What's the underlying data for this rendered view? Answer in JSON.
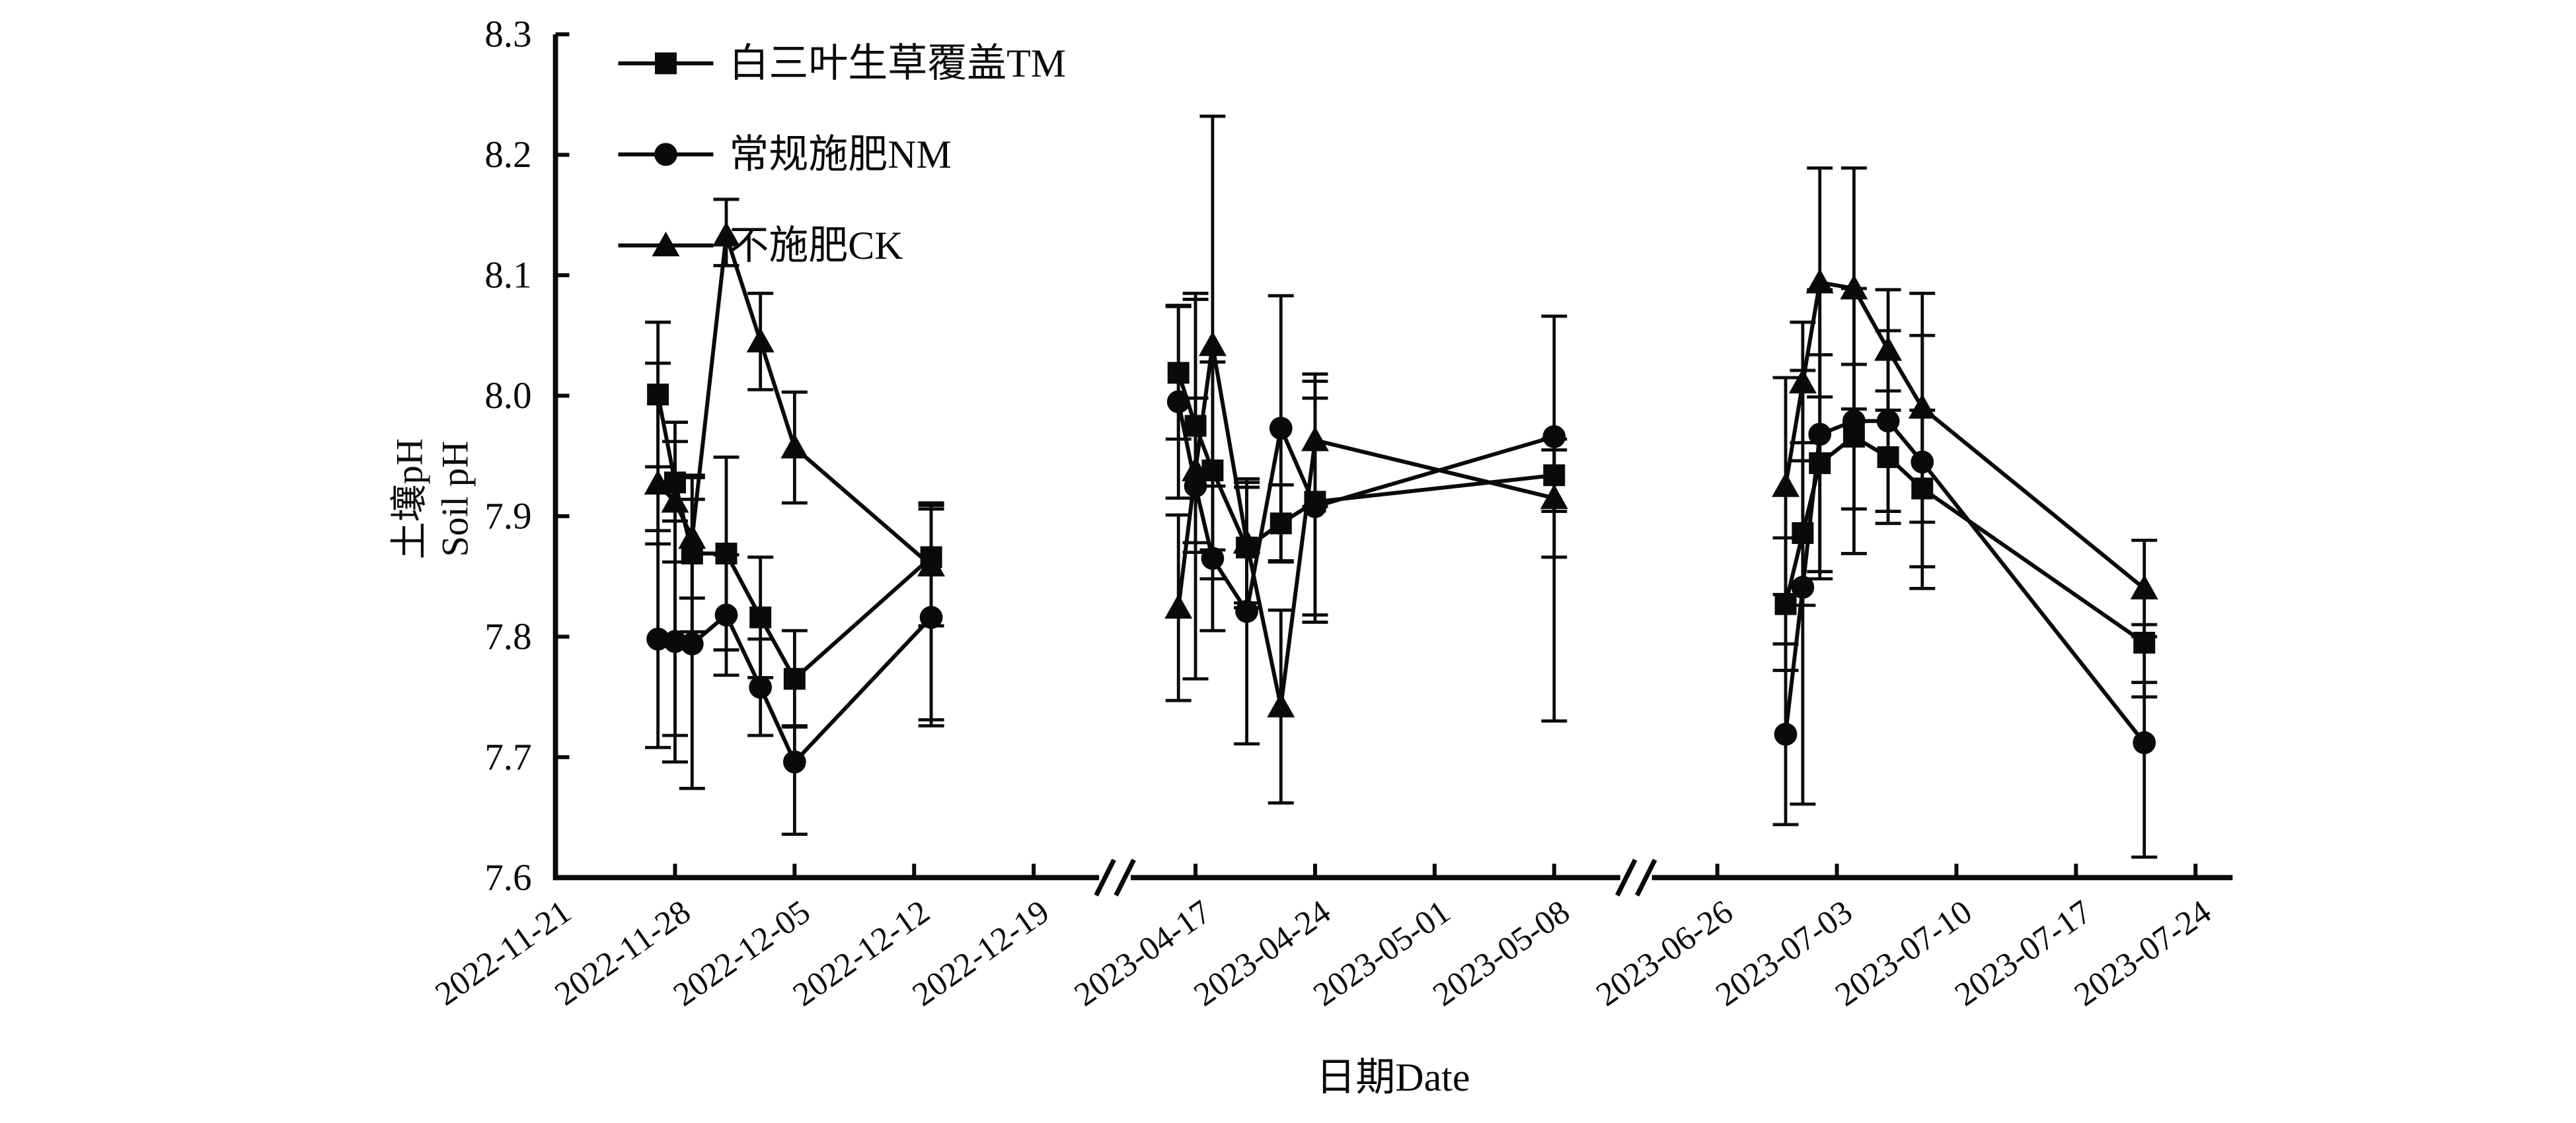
{
  "figure": {
    "background": "#ffffff",
    "ink_color": "#0a0a0a",
    "y_axis": {
      "title_cn": "土壤pH",
      "title_en": "Soil pH",
      "min": 7.6,
      "max": 8.3,
      "step": 0.1,
      "tick_labels": [
        "8.3",
        "8.2",
        "8.1",
        "8.0",
        "7.9",
        "7.8",
        "7.7",
        "7.6"
      ]
    },
    "x_axis": {
      "title": "日期Date",
      "segments": [
        {
          "tick_labels": [
            "2022-11-21",
            "2022-11-28",
            "2022-12-05",
            "2022-12-12",
            "2022-12-19"
          ]
        },
        {
          "tick_labels": [
            "2023-04-17",
            "2023-04-24",
            "2023-05-01",
            "2023-05-08"
          ]
        },
        {
          "tick_labels": [
            "2023-06-26",
            "2023-07-03",
            "2023-07-10",
            "2023-07-17",
            "2023-07-24"
          ]
        }
      ],
      "break_marks": 2
    },
    "legend": {
      "position": "upper-left-inside",
      "items": [
        {
          "label": "白三叶生草覆盖TM",
          "marker": "square"
        },
        {
          "label": "常规施肥NM",
          "marker": "circle"
        },
        {
          "label": "不施肥CK",
          "marker": "triangle"
        }
      ]
    }
  },
  "chart_data": {
    "type": "line",
    "title": "",
    "xlabel": "日期Date",
    "ylabel": "土壤pH Soil pH",
    "ylim": [
      7.6,
      8.3
    ],
    "grid": false,
    "error_bars": true,
    "series": [
      {
        "name": "白三叶生草覆盖TM",
        "marker": "square",
        "points": [
          {
            "date": "2022-11-27",
            "ph": 8.001,
            "err_up": 0.06,
            "err_dn": 0.06
          },
          {
            "date": "2022-11-28",
            "ph": 7.928,
            "err_up": 0.05,
            "err_dn": 0.21
          },
          {
            "date": "2022-11-29",
            "ph": 7.869,
            "err_up": 0.065,
            "err_dn": 0.065
          },
          {
            "date": "2022-12-01",
            "ph": 7.869,
            "err_up": 0.08,
            "err_dn": 0.08
          },
          {
            "date": "2022-12-03",
            "ph": 7.816,
            "err_up": 0.05,
            "err_dn": 0.05
          },
          {
            "date": "2022-12-05",
            "ph": 7.765,
            "err_up": 0.04,
            "err_dn": 0.04
          },
          {
            "date": "2022-12-13",
            "ph": 7.866,
            "err_up": 0.045,
            "err_dn": 0.135
          },
          {
            "date": "2023-04-16",
            "ph": 8.019,
            "err_up": 0.055,
            "err_dn": 0.055
          },
          {
            "date": "2023-04-17",
            "ph": 7.975,
            "err_up": 0.105,
            "err_dn": 0.105
          },
          {
            "date": "2023-04-18",
            "ph": 7.938,
            "err_up": 0.09,
            "err_dn": 0.09
          },
          {
            "date": "2023-04-20",
            "ph": 7.874,
            "err_up": 0.05,
            "err_dn": 0.05
          },
          {
            "date": "2023-04-22",
            "ph": 7.894,
            "err_up": 0.032,
            "err_dn": 0.032
          },
          {
            "date": "2023-04-24",
            "ph": 7.912,
            "err_up": 0.1,
            "err_dn": 0.1
          },
          {
            "date": "2023-05-08",
            "ph": 7.934,
            "err_up": 0.03,
            "err_dn": 0.03
          },
          {
            "date": "2023-06-30",
            "ph": 7.827,
            "err_up": 0.055,
            "err_dn": 0.055
          },
          {
            "date": "2023-07-01",
            "ph": 7.886,
            "err_up": 0.06,
            "err_dn": 0.06
          },
          {
            "date": "2023-07-02",
            "ph": 7.944,
            "err_up": 0.09,
            "err_dn": 0.09
          },
          {
            "date": "2023-07-04",
            "ph": 7.966,
            "err_up": 0.06,
            "err_dn": 0.06
          },
          {
            "date": "2023-07-06",
            "ph": 7.949,
            "err_up": 0.055,
            "err_dn": 0.055
          },
          {
            "date": "2023-07-08",
            "ph": 7.923,
            "err_up": 0.065,
            "err_dn": 0.065
          },
          {
            "date": "2023-07-21",
            "ph": 7.795,
            "err_up": 0.015,
            "err_dn": 0.045
          }
        ]
      },
      {
        "name": "常规施肥NM",
        "marker": "circle",
        "points": [
          {
            "date": "2022-11-27",
            "ph": 7.798,
            "err_up": 0.09,
            "err_dn": 0.09
          },
          {
            "date": "2022-11-28",
            "ph": 7.796,
            "err_up": 0.1,
            "err_dn": 0.1
          },
          {
            "date": "2022-11-29",
            "ph": 7.794,
            "err_up": 0.12,
            "err_dn": 0.12
          },
          {
            "date": "2022-12-01",
            "ph": 7.818,
            "err_up": 0.05,
            "err_dn": 0.05
          },
          {
            "date": "2022-12-03",
            "ph": 7.758,
            "err_up": 0.04,
            "err_dn": 0.04
          },
          {
            "date": "2022-12-05",
            "ph": 7.696,
            "err_up": 0.03,
            "err_dn": 0.06
          },
          {
            "date": "2022-12-13",
            "ph": 7.816,
            "err_up": 0.09,
            "err_dn": 0.09
          },
          {
            "date": "2023-04-16",
            "ph": 7.995,
            "err_up": 0.08,
            "err_dn": 0.08
          },
          {
            "date": "2023-04-17",
            "ph": 7.925,
            "err_up": 0.16,
            "err_dn": 0.16
          },
          {
            "date": "2023-04-18",
            "ph": 7.865,
            "err_up": 0.06,
            "err_dn": 0.06
          },
          {
            "date": "2023-04-20",
            "ph": 7.821,
            "err_up": 0.11,
            "err_dn": 0.11
          },
          {
            "date": "2023-04-22",
            "ph": 7.973,
            "err_up": 0.11,
            "err_dn": 0.11
          },
          {
            "date": "2023-04-24",
            "ph": 7.908,
            "err_up": 0.09,
            "err_dn": 0.09
          },
          {
            "date": "2023-05-08",
            "ph": 7.966,
            "err_up": 0.1,
            "err_dn": 0.1
          },
          {
            "date": "2023-06-30",
            "ph": 7.719,
            "err_up": 0.075,
            "err_dn": 0.075
          },
          {
            "date": "2023-07-01",
            "ph": 7.841,
            "err_up": 0.18,
            "err_dn": 0.18
          },
          {
            "date": "2023-07-02",
            "ph": 7.968,
            "err_up": 0.12,
            "err_dn": 0.12
          },
          {
            "date": "2023-07-04",
            "ph": 7.979,
            "err_up": 0.11,
            "err_dn": 0.11
          },
          {
            "date": "2023-07-06",
            "ph": 7.979,
            "err_up": 0.075,
            "err_dn": 0.075
          },
          {
            "date": "2023-07-08",
            "ph": 7.945,
            "err_up": 0.105,
            "err_dn": 0.105
          },
          {
            "date": "2023-07-21",
            "ph": 7.712,
            "err_up": 0.05,
            "err_dn": 0.095
          }
        ]
      },
      {
        "name": "不施肥CK",
        "marker": "triangle",
        "points": [
          {
            "date": "2022-11-27",
            "ph": 7.927,
            "err_up": 0.1,
            "err_dn": 0.05
          },
          {
            "date": "2022-11-28",
            "ph": 7.912,
            "err_up": 0.05,
            "err_dn": 0.05
          },
          {
            "date": "2022-11-29",
            "ph": 7.882,
            "err_up": 0.05,
            "err_dn": 0.05
          },
          {
            "date": "2022-12-01",
            "ph": 8.133,
            "err_up": 0.03,
            "err_dn": 0.025
          },
          {
            "date": "2022-12-03",
            "ph": 8.045,
            "err_up": 0.04,
            "err_dn": 0.04
          },
          {
            "date": "2022-12-05",
            "ph": 7.957,
            "err_up": 0.046,
            "err_dn": 0.046
          },
          {
            "date": "2022-12-13",
            "ph": 7.859,
            "err_up": 0.05,
            "err_dn": 0.05
          },
          {
            "date": "2023-04-16",
            "ph": 7.824,
            "err_up": 0.077,
            "err_dn": 0.077
          },
          {
            "date": "2023-04-17",
            "ph": 7.938,
            "err_up": 0.06,
            "err_dn": 0.06
          },
          {
            "date": "2023-04-18",
            "ph": 8.042,
            "err_up": 0.19,
            "err_dn": 0.17
          },
          {
            "date": "2023-04-20",
            "ph": 7.878,
            "err_up": 0.05,
            "err_dn": 0.05
          },
          {
            "date": "2023-04-22",
            "ph": 7.742,
            "err_up": 0.08,
            "err_dn": 0.08
          },
          {
            "date": "2023-04-24",
            "ph": 7.963,
            "err_up": 0.055,
            "err_dn": 0.055
          },
          {
            "date": "2023-05-08",
            "ph": 7.915,
            "err_up": 0.04,
            "err_dn": 0.185
          },
          {
            "date": "2023-06-30",
            "ph": 7.925,
            "err_up": 0.09,
            "err_dn": 0.09
          },
          {
            "date": "2023-07-01",
            "ph": 8.011,
            "err_up": 0.05,
            "err_dn": 0.05
          },
          {
            "date": "2023-07-02",
            "ph": 8.094,
            "err_up": 0.095,
            "err_dn": 0.095
          },
          {
            "date": "2023-07-04",
            "ph": 8.089,
            "err_up": 0.1,
            "err_dn": 0.1
          },
          {
            "date": "2023-07-06",
            "ph": 8.038,
            "err_up": 0.05,
            "err_dn": 0.05
          },
          {
            "date": "2023-07-08",
            "ph": 7.99,
            "err_up": 0.095,
            "err_dn": 0.095
          },
          {
            "date": "2023-07-21",
            "ph": 7.84,
            "err_up": 0.04,
            "err_dn": 0.04
          }
        ]
      }
    ]
  }
}
